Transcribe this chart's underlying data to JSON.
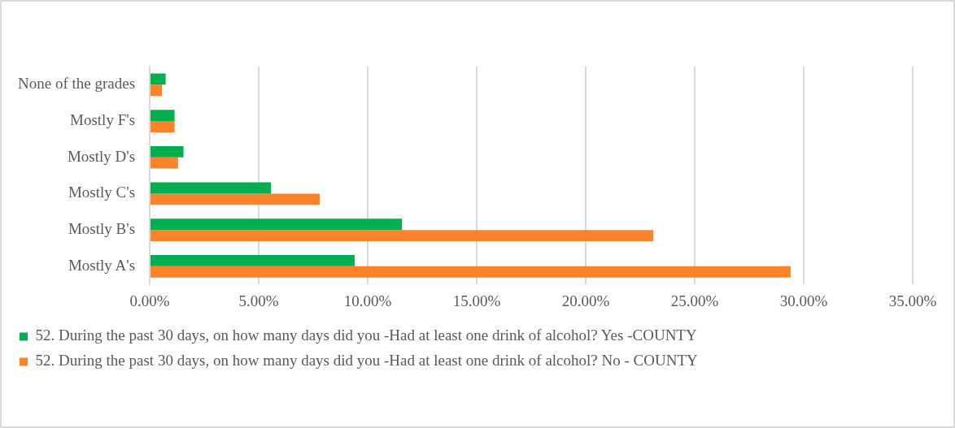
{
  "chart_data": {
    "type": "bar",
    "orientation": "horizontal",
    "categories": [
      "None of the grades",
      "Mostly F's",
      "Mostly D's",
      "Mostly C's",
      "Mostly B's",
      "Mostly A's"
    ],
    "series": [
      {
        "name": "52. During the past 30 days, on how many days did you -Had at least one drink of alcohol? Yes -COUNTY",
        "color": "#00b050",
        "values": [
          0.73,
          1.14,
          1.55,
          5.57,
          11.57,
          9.4
        ]
      },
      {
        "name": "52. During the past 30 days, on how many days did you -Had at least one drink of alcohol? No - COUNTY",
        "color": "#fb832a",
        "values": [
          0.56,
          1.14,
          1.3,
          7.8,
          23.1,
          29.4
        ]
      }
    ],
    "xlim": [
      0,
      35
    ],
    "xticks": [
      {
        "value": 0,
        "label": "0.00%"
      },
      {
        "value": 5,
        "label": "5.00%"
      },
      {
        "value": 10,
        "label": "10.00%"
      },
      {
        "value": 15,
        "label": "15.00%"
      },
      {
        "value": 20,
        "label": "20.00%"
      },
      {
        "value": 25,
        "label": "25.00%"
      },
      {
        "value": 30,
        "label": "30.00%"
      },
      {
        "value": 35,
        "label": "35.00%"
      }
    ],
    "grid": "x",
    "legend": "bottom"
  }
}
